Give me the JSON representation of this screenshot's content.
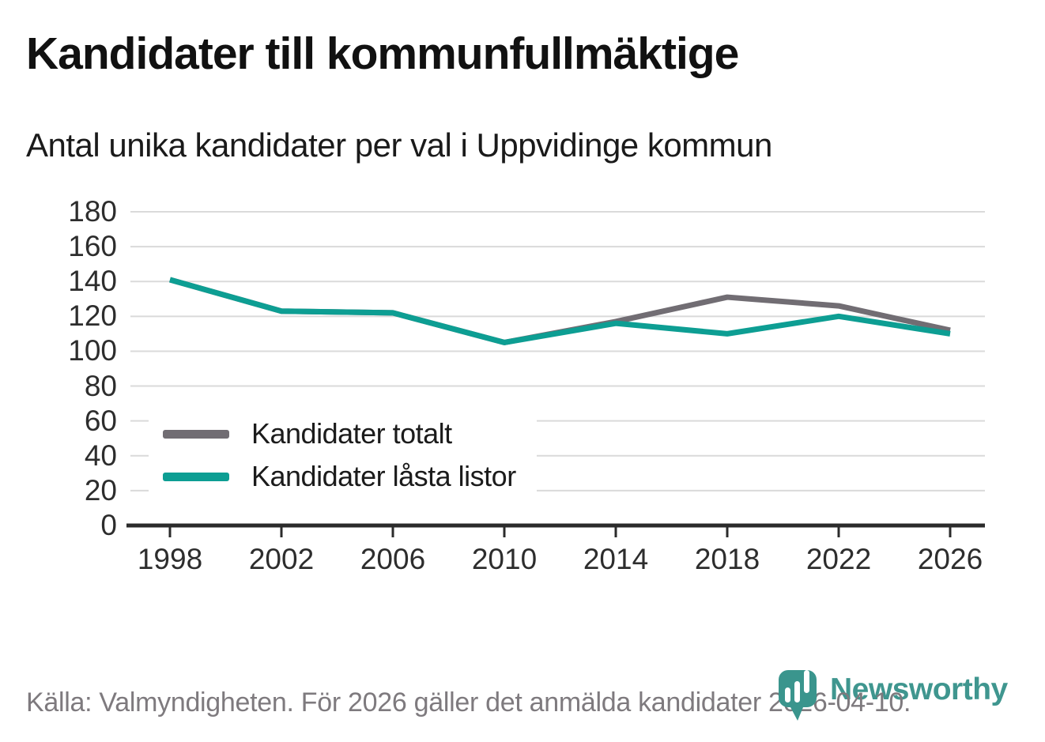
{
  "header": {
    "title": "Kandidater till kommunfullmäktige",
    "subtitle": "Antal unika kandidater per val i Uppvidinge kommun"
  },
  "chart_data": {
    "type": "line",
    "categories": [
      "1998",
      "2002",
      "2006",
      "2010",
      "2014",
      "2018",
      "2022",
      "2026"
    ],
    "series": [
      {
        "name": "Kandidater totalt",
        "color": "#716d73",
        "values": [
          141,
          123,
          122,
          105,
          117,
          131,
          126,
          112
        ]
      },
      {
        "name": "Kandidater låsta listor",
        "color": "#0d9e93",
        "values": [
          141,
          123,
          122,
          105,
          116,
          110,
          120,
          110
        ]
      }
    ],
    "title": "Kandidater till kommunfullmäktige",
    "subtitle": "Antal unika kandidater per val i Uppvidinge kommun",
    "xlabel": "",
    "ylabel": "",
    "ylim": [
      0,
      180
    ],
    "y_ticks": [
      0,
      20,
      40,
      60,
      80,
      100,
      120,
      140,
      160,
      180
    ],
    "grid": "horizontal",
    "legend_position": "inside-bottom-left"
  },
  "footer": {
    "source": "Källa: Valmyndigheten. För 2026 gäller det anmälda kandidater 2026-04-10.",
    "brand": "Newsworthy"
  },
  "colors": {
    "axis": "#2b2b2b",
    "grid": "#dadada",
    "brand_teal": "#3a958d"
  }
}
